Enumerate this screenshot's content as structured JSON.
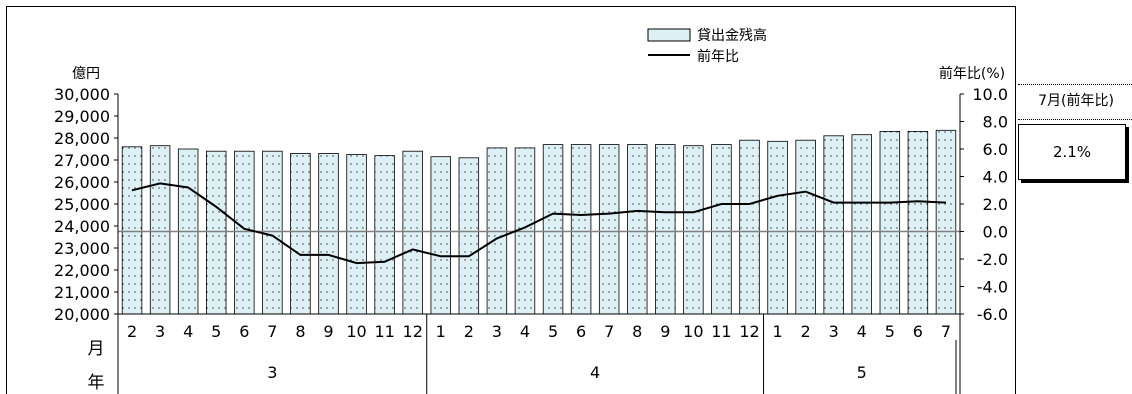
{
  "chart_data": {
    "type": "bar",
    "left_axis": {
      "unit_label": "億円",
      "ylim": [
        20000,
        30000
      ],
      "ticks": [
        "30,000",
        "29,000",
        "28,000",
        "27,000",
        "26,000",
        "25,000",
        "24,000",
        "23,000",
        "22,000",
        "21,000",
        "20,000"
      ]
    },
    "right_axis": {
      "unit_label": "前年比(%)",
      "ylim": [
        -6.0,
        10.0
      ],
      "ticks": [
        "10.0",
        "8.0",
        "6.0",
        "4.0",
        "2.0",
        "0.0",
        "-2.0",
        "-4.0",
        "-6.0"
      ]
    },
    "x_row_label_month": "月",
    "x_row_label_year": "年",
    "months": [
      "2",
      "3",
      "4",
      "5",
      "6",
      "7",
      "8",
      "9",
      "10",
      "11",
      "12",
      "1",
      "2",
      "3",
      "4",
      "5",
      "6",
      "7",
      "8",
      "9",
      "10",
      "11",
      "12",
      "1",
      "2",
      "3",
      "4",
      "5",
      "6",
      "7"
    ],
    "years": [
      {
        "label": "3",
        "count": 11
      },
      {
        "label": "4",
        "count": 12
      },
      {
        "label": "5",
        "count": 7
      }
    ],
    "series": [
      {
        "name": "貸出金残高",
        "kind": "bar",
        "axis": "left",
        "values": [
          27600,
          27650,
          27500,
          27400,
          27400,
          27400,
          27300,
          27300,
          27250,
          27200,
          27400,
          27150,
          27100,
          27550,
          27550,
          27700,
          27700,
          27700,
          27700,
          27700,
          27650,
          27700,
          27900,
          27850,
          27900,
          28100,
          28150,
          28300,
          28300,
          28350
        ]
      },
      {
        "name": "前年比",
        "kind": "line",
        "axis": "right",
        "values": [
          3.0,
          3.5,
          3.2,
          1.8,
          0.2,
          -0.3,
          -1.7,
          -1.7,
          -2.3,
          -2.2,
          -1.3,
          -1.8,
          -1.8,
          -0.5,
          0.3,
          1.3,
          1.2,
          1.3,
          1.5,
          1.4,
          1.4,
          2.0,
          2.0,
          2.6,
          2.9,
          2.1,
          2.1,
          2.1,
          2.2,
          2.1
        ]
      }
    ],
    "legend_position": "top-right",
    "colors": {
      "bar_fill": "#dcf0f5",
      "bar_stroke": "#000000",
      "line": "#000000",
      "zero_line": "#808080"
    }
  },
  "side_box": {
    "label": "7月(前年比)",
    "value": "2.1%"
  }
}
